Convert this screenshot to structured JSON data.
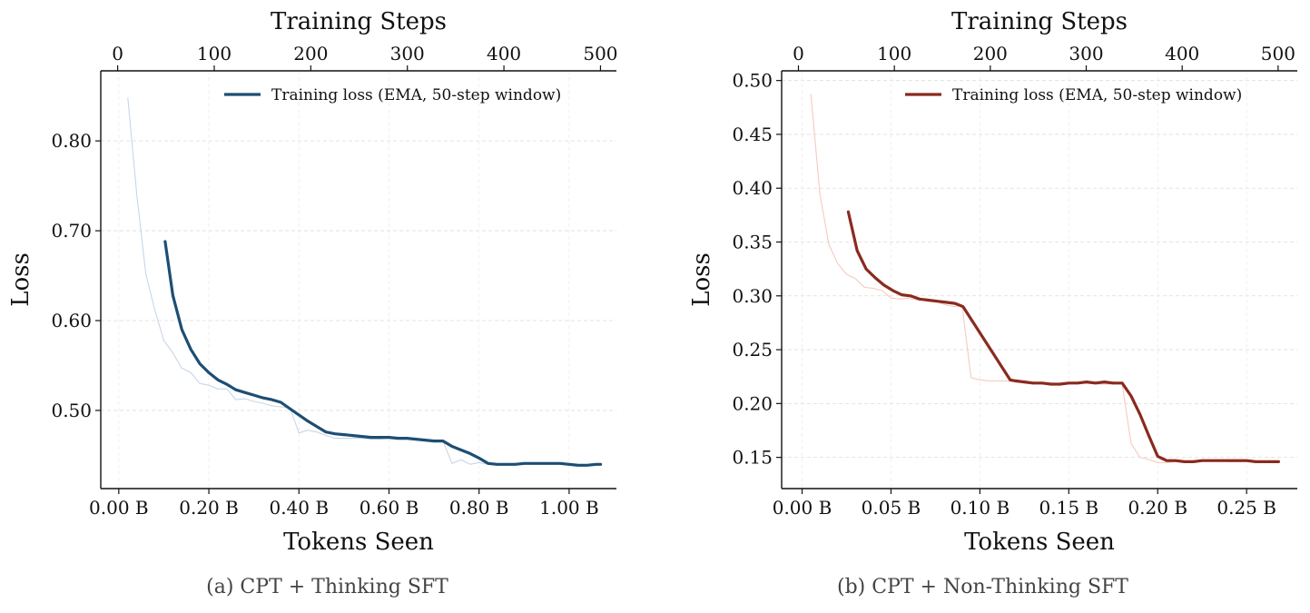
{
  "chart_data": [
    {
      "type": "line",
      "caption": "(a) CPT + Thinking SFT",
      "xlabel": "Tokens Seen",
      "ylabel": "Loss",
      "top_xlabel": "Training Steps",
      "xlim": [
        -0.04,
        1.105
      ],
      "ylim": [
        0.413,
        0.878
      ],
      "xticks": [
        0.0,
        0.2,
        0.4,
        0.6,
        0.8,
        1.0
      ],
      "xtick_labels": [
        "0.00 B",
        "0.20 B",
        "0.40 B",
        "0.60 B",
        "0.80 B",
        "1.00 B"
      ],
      "yticks": [
        0.5,
        0.6,
        0.7,
        0.8
      ],
      "ytick_labels": [
        "0.50",
        "0.60",
        "0.70",
        "0.80"
      ],
      "top_xlim": [
        -17.5,
        516.5
      ],
      "top_xticks": [
        0,
        100,
        200,
        300,
        400,
        500
      ],
      "top_xtick_labels": [
        "0",
        "100",
        "200",
        "300",
        "400",
        "500"
      ],
      "grid": true,
      "legend": {
        "position": "top-right",
        "label": "Training loss  (EMA, 50-step window)"
      },
      "color": "#1d4e73",
      "raw_color": "#c6d6ea",
      "series": [
        {
          "name": "raw",
          "x": [
            0.02,
            0.04,
            0.06,
            0.08,
            0.1,
            0.12,
            0.14,
            0.16,
            0.18,
            0.2,
            0.22,
            0.24,
            0.26,
            0.28,
            0.3,
            0.32,
            0.34,
            0.36,
            0.38,
            0.4,
            0.42,
            0.44,
            0.46,
            0.48,
            0.5,
            0.52,
            0.54,
            0.56,
            0.58,
            0.6,
            0.62,
            0.64,
            0.66,
            0.68,
            0.7,
            0.72,
            0.74,
            0.76,
            0.78,
            0.8,
            0.82,
            0.84,
            0.86,
            0.88,
            0.9,
            0.92,
            0.94,
            0.96,
            0.98,
            1.0,
            1.02,
            1.04,
            1.06,
            1.07
          ],
          "values": [
            0.848,
            0.74,
            0.652,
            0.612,
            0.578,
            0.564,
            0.547,
            0.542,
            0.53,
            0.528,
            0.524,
            0.524,
            0.512,
            0.513,
            0.51,
            0.508,
            0.505,
            0.504,
            0.503,
            0.475,
            0.478,
            0.476,
            0.472,
            0.469,
            0.469,
            0.469,
            0.469,
            0.468,
            0.468,
            0.469,
            0.468,
            0.468,
            0.467,
            0.466,
            0.466,
            0.466,
            0.441,
            0.445,
            0.44,
            0.442,
            0.44,
            0.44,
            0.44,
            0.441,
            0.441,
            0.441,
            0.441,
            0.441,
            0.441,
            0.441,
            0.439,
            0.439,
            0.44,
            0.439
          ]
        },
        {
          "name": "Training loss  (EMA, 50-step window)",
          "x": [
            0.103,
            0.12,
            0.14,
            0.16,
            0.18,
            0.2,
            0.22,
            0.24,
            0.26,
            0.28,
            0.3,
            0.32,
            0.34,
            0.36,
            0.38,
            0.4,
            0.42,
            0.44,
            0.46,
            0.48,
            0.5,
            0.52,
            0.54,
            0.56,
            0.58,
            0.6,
            0.62,
            0.64,
            0.66,
            0.68,
            0.7,
            0.72,
            0.74,
            0.76,
            0.78,
            0.8,
            0.82,
            0.84,
            0.86,
            0.88,
            0.9,
            0.92,
            0.94,
            0.96,
            0.98,
            1.0,
            1.02,
            1.04,
            1.06,
            1.07
          ],
          "values": [
            0.688,
            0.628,
            0.59,
            0.568,
            0.552,
            0.542,
            0.534,
            0.529,
            0.523,
            0.52,
            0.517,
            0.514,
            0.512,
            0.509,
            0.502,
            0.495,
            0.488,
            0.482,
            0.476,
            0.474,
            0.473,
            0.472,
            0.471,
            0.47,
            0.47,
            0.47,
            0.469,
            0.469,
            0.468,
            0.467,
            0.466,
            0.466,
            0.46,
            0.456,
            0.452,
            0.447,
            0.441,
            0.44,
            0.44,
            0.44,
            0.441,
            0.441,
            0.441,
            0.441,
            0.441,
            0.44,
            0.439,
            0.439,
            0.44,
            0.44
          ]
        }
      ]
    },
    {
      "type": "line",
      "caption": "(b) CPT + Non-Thinking SFT",
      "xlabel": "Tokens Seen",
      "ylabel": "Loss",
      "top_xlabel": "Training Steps",
      "xlim": [
        -0.0115,
        0.2785
      ],
      "ylim": [
        0.121,
        0.509
      ],
      "xticks": [
        0.0,
        0.05,
        0.1,
        0.15,
        0.2,
        0.25
      ],
      "xtick_labels": [
        "0.00 B",
        "0.05 B",
        "0.10 B",
        "0.15 B",
        "0.20 B",
        "0.25 B"
      ],
      "yticks": [
        0.15,
        0.2,
        0.25,
        0.3,
        0.35,
        0.4,
        0.45,
        0.5
      ],
      "ytick_labels": [
        "0.15",
        "0.20",
        "0.25",
        "0.30",
        "0.35",
        "0.40",
        "0.45",
        "0.50"
      ],
      "top_xlim": [
        -17.5,
        520
      ],
      "top_xticks": [
        0,
        100,
        200,
        300,
        400,
        500
      ],
      "top_xtick_labels": [
        "0",
        "100",
        "200",
        "300",
        "400",
        "500"
      ],
      "grid": true,
      "legend": {
        "position": "top-right",
        "label": "Training loss  (EMA, 50-step window)"
      },
      "color": "#8a2a1f",
      "raw_color": "#f3cbbf",
      "series": [
        {
          "name": "raw",
          "x": [
            0.005,
            0.01,
            0.015,
            0.02,
            0.025,
            0.03,
            0.035,
            0.04,
            0.045,
            0.05,
            0.055,
            0.06,
            0.065,
            0.07,
            0.075,
            0.08,
            0.085,
            0.09,
            0.095,
            0.1,
            0.105,
            0.11,
            0.115,
            0.12,
            0.125,
            0.13,
            0.135,
            0.14,
            0.145,
            0.15,
            0.155,
            0.16,
            0.165,
            0.17,
            0.175,
            0.18,
            0.185,
            0.19,
            0.195,
            0.2,
            0.205,
            0.21,
            0.215,
            0.22,
            0.225,
            0.23,
            0.235,
            0.24,
            0.245,
            0.25,
            0.255,
            0.26,
            0.265,
            0.268
          ],
          "values": [
            0.487,
            0.395,
            0.348,
            0.33,
            0.32,
            0.316,
            0.308,
            0.307,
            0.305,
            0.298,
            0.297,
            0.298,
            0.296,
            0.296,
            0.295,
            0.292,
            0.29,
            0.291,
            0.224,
            0.222,
            0.221,
            0.221,
            0.221,
            0.22,
            0.219,
            0.218,
            0.218,
            0.218,
            0.218,
            0.219,
            0.219,
            0.219,
            0.218,
            0.218,
            0.218,
            0.218,
            0.163,
            0.15,
            0.148,
            0.145,
            0.145,
            0.146,
            0.146,
            0.146,
            0.147,
            0.147,
            0.147,
            0.146,
            0.146,
            0.146,
            0.146,
            0.146,
            0.145,
            0.145
          ]
        },
        {
          "name": "Training loss  (EMA, 50-step window)",
          "x": [
            0.026,
            0.031,
            0.036,
            0.041,
            0.046,
            0.051,
            0.056,
            0.061,
            0.066,
            0.071,
            0.076,
            0.081,
            0.086,
            0.0905,
            0.117,
            0.12,
            0.125,
            0.13,
            0.135,
            0.14,
            0.145,
            0.15,
            0.155,
            0.16,
            0.165,
            0.17,
            0.175,
            0.18,
            0.185,
            0.19,
            0.195,
            0.2,
            0.205,
            0.21,
            0.215,
            0.22,
            0.225,
            0.23,
            0.235,
            0.24,
            0.245,
            0.25,
            0.255,
            0.26,
            0.265,
            0.268
          ],
          "values": [
            0.378,
            0.342,
            0.325,
            0.317,
            0.31,
            0.305,
            0.301,
            0.3,
            0.297,
            0.296,
            0.295,
            0.294,
            0.293,
            0.29,
            0.222,
            0.221,
            0.22,
            0.219,
            0.219,
            0.218,
            0.218,
            0.219,
            0.219,
            0.22,
            0.219,
            0.22,
            0.219,
            0.219,
            0.207,
            0.19,
            0.17,
            0.151,
            0.147,
            0.147,
            0.146,
            0.146,
            0.147,
            0.147,
            0.147,
            0.147,
            0.147,
            0.147,
            0.146,
            0.146,
            0.146,
            0.146
          ]
        }
      ]
    }
  ]
}
